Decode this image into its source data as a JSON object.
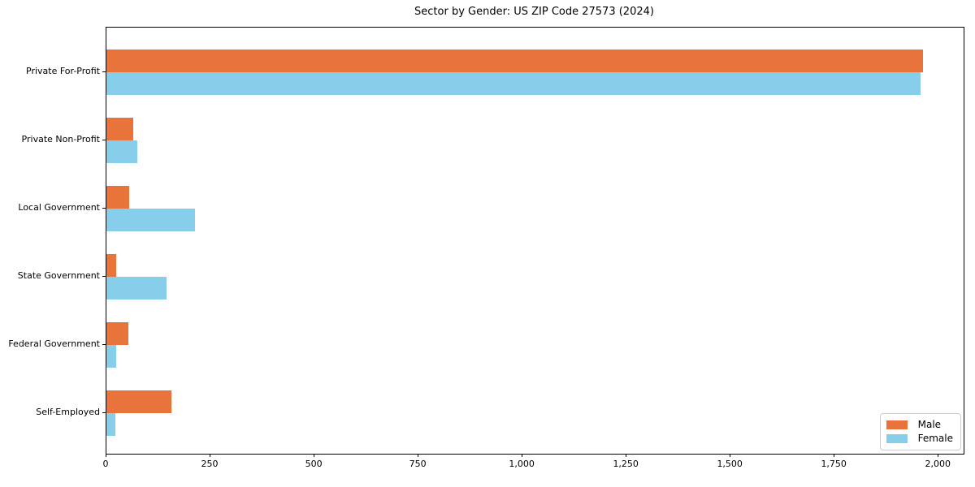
{
  "title": "Sector by Gender: US ZIP Code 27573 (2024)",
  "chart_data": {
    "type": "bar",
    "orientation": "horizontal",
    "title": "Sector by Gender: US ZIP Code 27573 (2024)",
    "xlabel": "",
    "ylabel": "",
    "categories": [
      "Private For-Profit",
      "Private Non-Profit",
      "Local Government",
      "State Government",
      "Federal Government",
      "Self-Employed"
    ],
    "series": [
      {
        "name": "Male",
        "color": "#e8743b",
        "values": [
          1962,
          64,
          54,
          24,
          52,
          157
        ]
      },
      {
        "name": "Female",
        "color": "#87ceeb",
        "values": [
          1956,
          75,
          212,
          145,
          24,
          21
        ]
      }
    ],
    "xlim": [
      0,
      2060
    ],
    "x_ticks": [
      0,
      250,
      500,
      750,
      1000,
      1250,
      1500,
      1750,
      2000
    ],
    "x_tick_labels": [
      "0",
      "250",
      "500",
      "750",
      "1,000",
      "1,250",
      "1,500",
      "1,750",
      "2,000"
    ],
    "grid": false,
    "legend_position": "lower right",
    "background_color": "#ffffff",
    "spine_color": "#000000"
  }
}
